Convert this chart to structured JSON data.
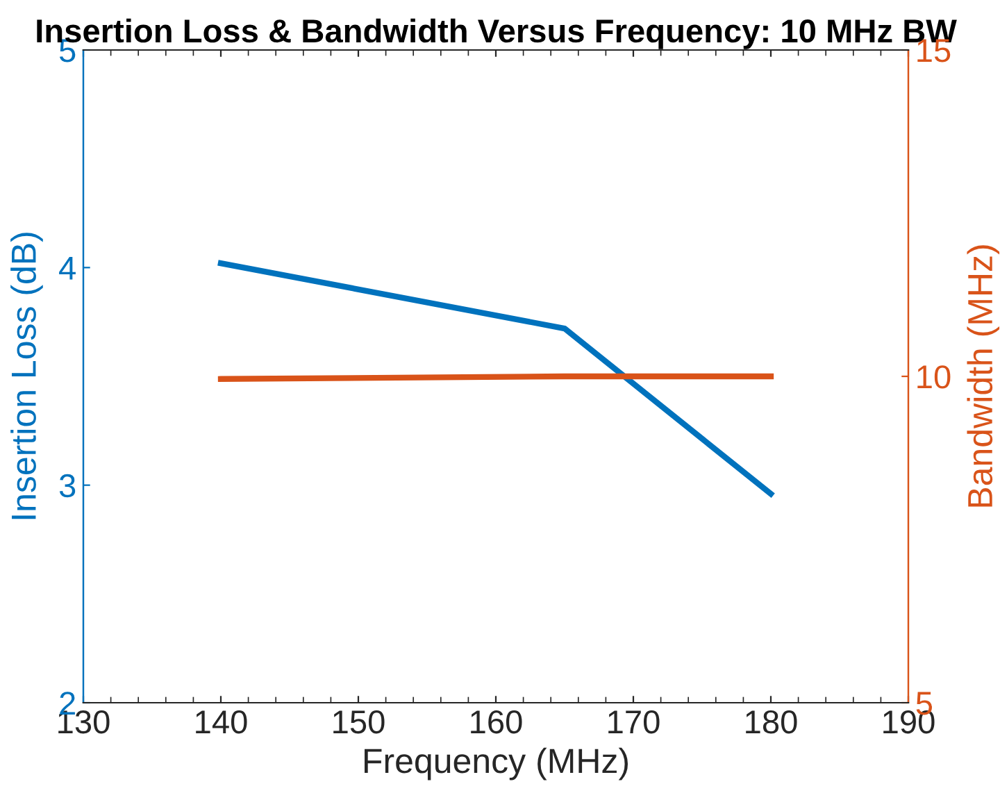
{
  "chart_data": {
    "type": "line",
    "title": "Insertion Loss & Bandwidth Versus Frequency: 10 MHz BW",
    "xlabel": "Frequency (MHz)",
    "ylabel": "Insertion Loss (dB)",
    "y2label": "Bandwidth (MHz)",
    "x": [
      140,
      165,
      180
    ],
    "series": [
      {
        "color": "#0072bd",
        "values": [
          4.02,
          3.72,
          2.96
        ]
      },
      {
        "color": "#d95319",
        "values": [
          9.96,
          10.0,
          10.0
        ],
        "axis": "y2"
      }
    ],
    "xlim": [
      130,
      190
    ],
    "xticks": [
      130,
      140,
      150,
      160,
      170,
      180,
      190
    ],
    "ylim": [
      2,
      5
    ],
    "yticks": [
      2,
      3,
      4,
      5
    ],
    "y2lim": [
      5,
      15
    ],
    "y2ticks": [
      5,
      10,
      15
    ],
    "grid": false,
    "legend": false,
    "marker": "none",
    "line_style": "solid"
  }
}
